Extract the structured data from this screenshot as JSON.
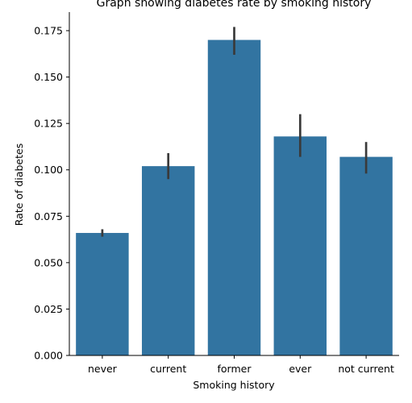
{
  "chart_data": {
    "type": "bar",
    "title": "Graph showing diabetes rate by smoking history",
    "xlabel": "Smoking history",
    "ylabel": "Rate of diabetes",
    "categories": [
      "never",
      "current",
      "former",
      "ever",
      "not current"
    ],
    "values": [
      0.066,
      0.102,
      0.17,
      0.118,
      0.107
    ],
    "error_bars": [
      [
        0.064,
        0.068
      ],
      [
        0.095,
        0.109
      ],
      [
        0.162,
        0.177
      ],
      [
        0.107,
        0.13
      ],
      [
        0.098,
        0.115
      ]
    ],
    "ylim": [
      0,
      0.185
    ],
    "yticks": [
      "0.000",
      "0.025",
      "0.050",
      "0.075",
      "0.100",
      "0.125",
      "0.150",
      "0.175"
    ],
    "grid": false,
    "bar_color": "#3274a1",
    "error_color": "#3a3a3a"
  }
}
